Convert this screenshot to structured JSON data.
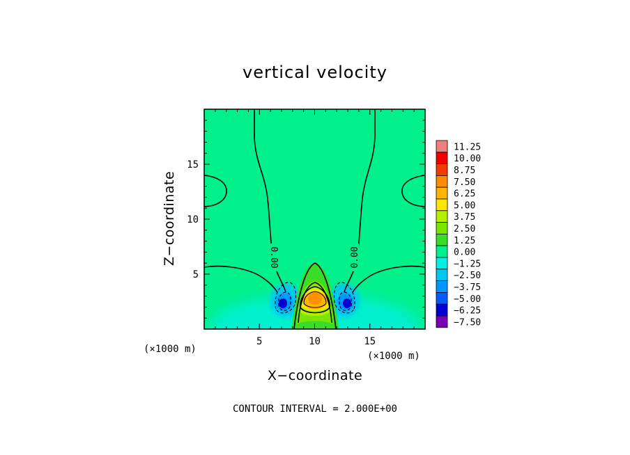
{
  "chart_data": {
    "type": "heatmap",
    "title": "vertical velocity",
    "xlabel": "X−coordinate",
    "ylabel": "Z−coordinate",
    "x_unit": "(×1000 m)",
    "y_unit": "(×1000 m)",
    "xlim": [
      0,
      20
    ],
    "ylim": [
      0,
      20
    ],
    "xticks": [
      5,
      10,
      15
    ],
    "yticks": [
      5,
      10,
      15
    ],
    "contour_interval_text": "CONTOUR INTERVAL = 2.000E+00",
    "contour_labels": [
      "0.00",
      "0.00"
    ],
    "colorbar": {
      "levels": [
        "11.25",
        "10.00",
        "8.75",
        "7.50",
        "6.25",
        "5.00",
        "3.75",
        "2.50",
        "1.25",
        "0.00",
        "−1.25",
        "−2.50",
        "−3.75",
        "−5.00",
        "−6.25",
        "−7.50"
      ],
      "colors": [
        "#f08080",
        "#f20000",
        "#f23c00",
        "#ff8c00",
        "#ffb400",
        "#ffe600",
        "#b4f000",
        "#78e600",
        "#3cdc28",
        "#00f08c",
        "#00f0e6",
        "#00c8f0",
        "#0096ff",
        "#005aff",
        "#0000d2",
        "#7800b4"
      ]
    },
    "field": {
      "background_value": 0.3,
      "updraft_max_approx": 6.5,
      "downdraft_min_approx": -5.5,
      "updraft_center": [
        10,
        2.5
      ],
      "downdraft_centers": [
        [
          7.2,
          2.3
        ],
        [
          12.8,
          2.3
        ]
      ]
    }
  }
}
